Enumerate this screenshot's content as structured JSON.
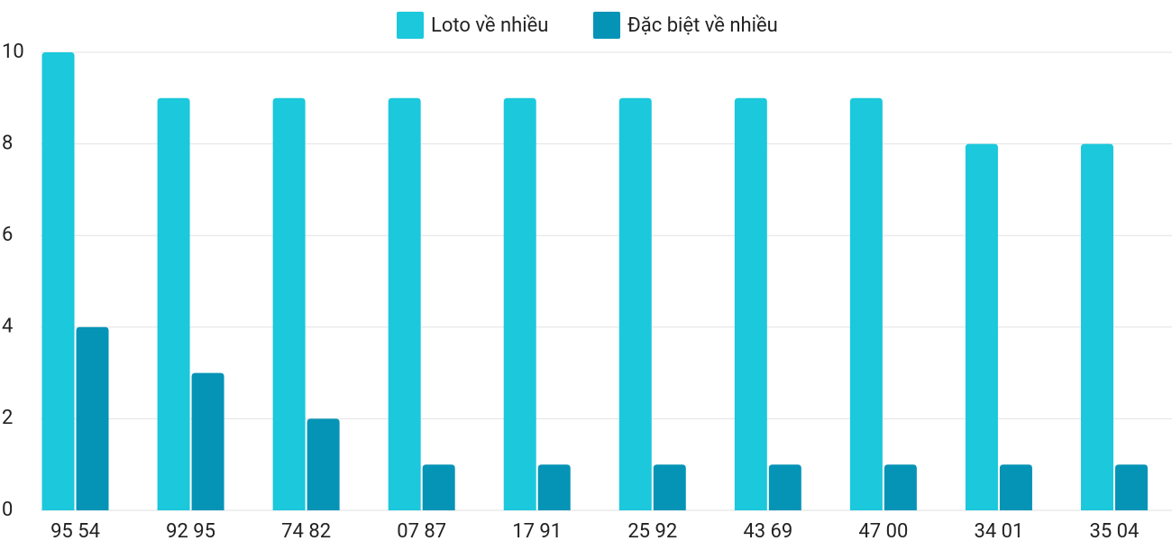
{
  "chart_data": {
    "type": "bar",
    "categories": [
      "95 54",
      "92 95",
      "74 82",
      "07 87",
      "17 91",
      "25 92",
      "43 69",
      "47 00",
      "34 01",
      "35 04"
    ],
    "series": [
      {
        "name": "Loto về nhiều",
        "color": "#1bc8dc",
        "values": [
          10,
          9,
          9,
          9,
          9,
          9,
          9,
          9,
          8,
          8
        ]
      },
      {
        "name": "Đặc biệt về nhiều",
        "color": "#0594b6",
        "values": [
          4,
          3,
          2,
          1,
          1,
          1,
          1,
          1,
          1,
          1
        ]
      }
    ],
    "ylim": [
      0,
      10
    ],
    "yticks": [
      0,
      2,
      4,
      6,
      8,
      10
    ],
    "grid": true,
    "legend": "top"
  }
}
